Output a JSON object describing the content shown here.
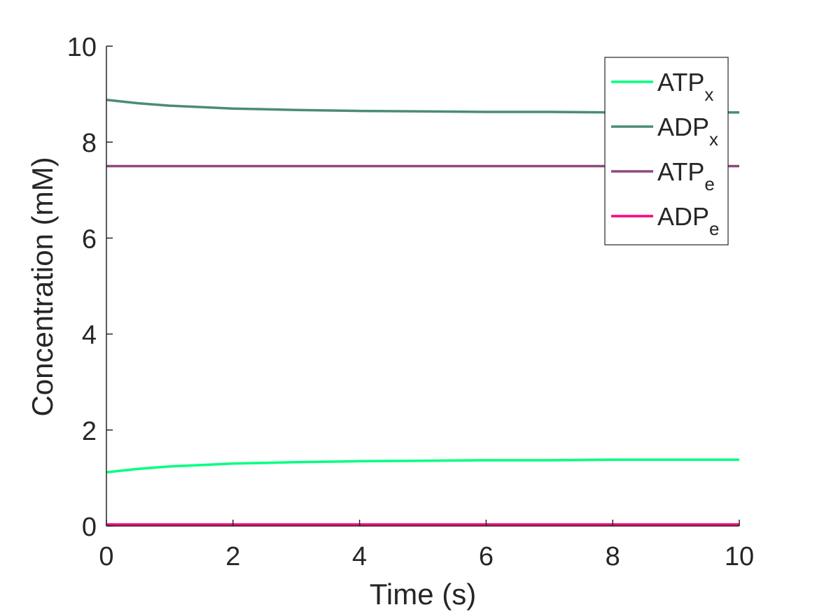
{
  "chart_data": {
    "type": "line",
    "xlabel": "Time (s)",
    "ylabel": "Concentration (mM)",
    "xlim": [
      0,
      10
    ],
    "ylim": [
      0,
      10
    ],
    "xticks": [
      "0",
      "2",
      "4",
      "6",
      "8",
      "10"
    ],
    "yticks": [
      "0",
      "2",
      "4",
      "6",
      "8",
      "10"
    ],
    "grid": false,
    "legend_position": "top-right",
    "x": [
      0,
      0.5,
      1,
      1.5,
      2,
      3,
      4,
      5,
      6,
      7,
      8,
      9,
      10
    ],
    "series": [
      {
        "name": "ATP",
        "subscript": "x",
        "color": "#00ff7f",
        "values": [
          1.12,
          1.19,
          1.24,
          1.27,
          1.3,
          1.33,
          1.35,
          1.36,
          1.37,
          1.37,
          1.38,
          1.38,
          1.38
        ]
      },
      {
        "name": "ADP",
        "subscript": "x",
        "color": "#4a8c76",
        "values": [
          8.88,
          8.81,
          8.76,
          8.73,
          8.7,
          8.67,
          8.65,
          8.64,
          8.63,
          8.63,
          8.62,
          8.62,
          8.62
        ]
      },
      {
        "name": "ATP",
        "subscript": "e",
        "color": "#8b4a7a",
        "values": [
          7.5,
          7.5,
          7.5,
          7.5,
          7.5,
          7.5,
          7.5,
          7.5,
          7.5,
          7.5,
          7.5,
          7.5,
          7.5
        ]
      },
      {
        "name": "ADP",
        "subscript": "e",
        "color": "#ff0080",
        "values": [
          0.03,
          0.03,
          0.03,
          0.03,
          0.03,
          0.03,
          0.03,
          0.03,
          0.03,
          0.03,
          0.03,
          0.03,
          0.03
        ]
      }
    ]
  }
}
